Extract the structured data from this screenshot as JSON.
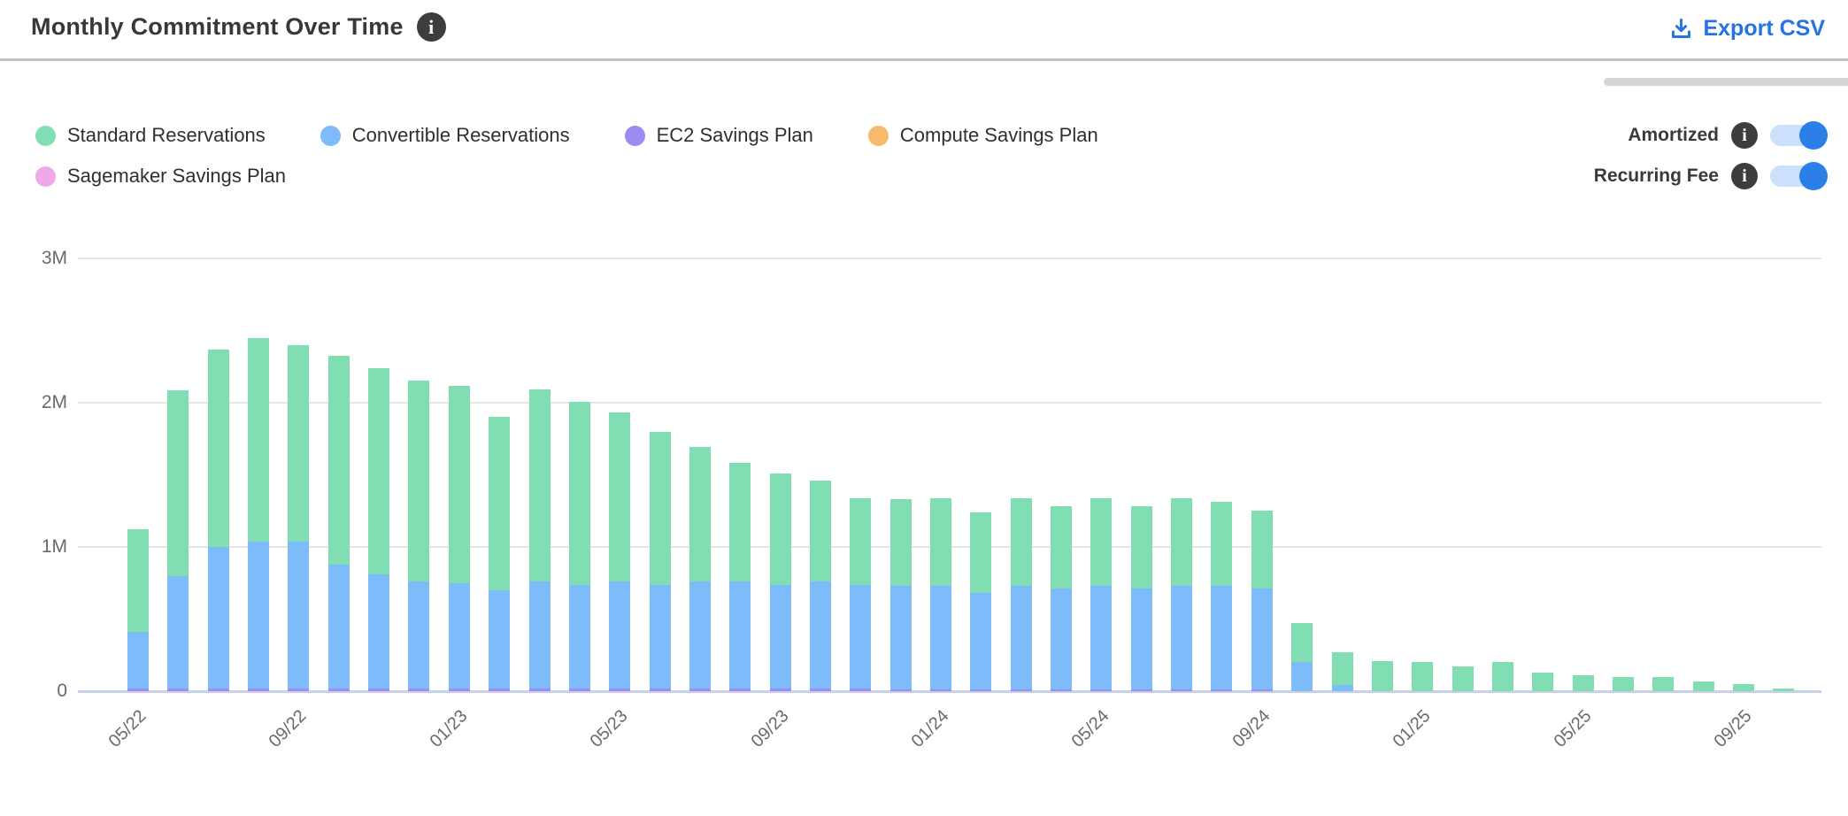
{
  "header": {
    "title": "Monthly Commitment Over Time",
    "title_info_icon": "info-icon",
    "export_label": "Export CSV",
    "export_icon": "download-icon",
    "export_color": "#2573e7"
  },
  "toggles": [
    {
      "label": "Amortized",
      "state": "on"
    },
    {
      "label": "Recurring Fee",
      "state": "on"
    }
  ],
  "toggle_colors": {
    "track": "#cbe0fa",
    "knob": "#2b7fe8"
  },
  "chart_data": {
    "type": "bar",
    "stacked": true,
    "title": "Monthly Commitment Over Time",
    "values_unit": "millions",
    "ylim": [
      0,
      3000000
    ],
    "yticks": [
      "0",
      "1M",
      "2M",
      "3M"
    ],
    "grid": "horizontal",
    "legend_position": "top-left",
    "categories": [
      "05/22",
      "06/22",
      "07/22",
      "08/22",
      "09/22",
      "10/22",
      "11/22",
      "12/22",
      "01/23",
      "02/23",
      "03/23",
      "04/23",
      "05/23",
      "06/23",
      "07/23",
      "08/23",
      "09/23",
      "10/23",
      "11/23",
      "12/23",
      "01/24",
      "02/24",
      "03/24",
      "04/24",
      "05/24",
      "06/24",
      "07/24",
      "08/24",
      "09/24",
      "10/24",
      "11/24",
      "12/24",
      "01/25",
      "02/25",
      "03/25",
      "04/25",
      "05/25",
      "06/25",
      "07/25",
      "08/25",
      "09/25",
      "10/25"
    ],
    "x_ticks": [
      {
        "index": 0,
        "label": "05/22"
      },
      {
        "index": 4,
        "label": "09/22"
      },
      {
        "index": 8,
        "label": "01/23"
      },
      {
        "index": 12,
        "label": "05/23"
      },
      {
        "index": 16,
        "label": "09/23"
      },
      {
        "index": 20,
        "label": "01/24"
      },
      {
        "index": 24,
        "label": "05/24"
      },
      {
        "index": 28,
        "label": "09/24"
      },
      {
        "index": 32,
        "label": "01/25"
      },
      {
        "index": 36,
        "label": "05/25"
      },
      {
        "index": 40,
        "label": "09/25"
      }
    ],
    "series": [
      {
        "name": "Standard Reservations",
        "color": "#80deb2",
        "values": [
          0.71,
          1.29,
          1.37,
          1.41,
          1.36,
          1.45,
          1.43,
          1.39,
          1.37,
          1.2,
          1.33,
          1.27,
          1.17,
          1.06,
          0.93,
          0.82,
          0.77,
          0.7,
          0.6,
          0.6,
          0.61,
          0.56,
          0.61,
          0.57,
          0.61,
          0.57,
          0.61,
          0.58,
          0.54,
          0.27,
          0.23,
          0.21,
          0.2,
          0.17,
          0.2,
          0.13,
          0.11,
          0.1,
          0.1,
          0.07,
          0.05,
          0.02
        ]
      },
      {
        "name": "Convertible Reservations",
        "color": "#7ebbfb",
        "values": [
          0.39,
          0.78,
          0.98,
          1.02,
          1.02,
          0.86,
          0.79,
          0.74,
          0.73,
          0.68,
          0.74,
          0.72,
          0.74,
          0.72,
          0.74,
          0.74,
          0.72,
          0.74,
          0.72,
          0.72,
          0.72,
          0.67,
          0.72,
          0.7,
          0.72,
          0.7,
          0.72,
          0.72,
          0.7,
          0.2,
          0.04,
          0,
          0,
          0,
          0,
          0,
          0,
          0,
          0,
          0,
          0,
          0
        ]
      },
      {
        "name": "EC2 Savings Plan",
        "color": "#9c8bf2",
        "values": [
          0.02,
          0.02,
          0.02,
          0.02,
          0.02,
          0.02,
          0.02,
          0.02,
          0.02,
          0.02,
          0.02,
          0.02,
          0.02,
          0.02,
          0.02,
          0.02,
          0.02,
          0.02,
          0.02,
          0.01,
          0.01,
          0.01,
          0.01,
          0.01,
          0.01,
          0.01,
          0.01,
          0.01,
          0.01,
          0,
          0,
          0,
          0,
          0,
          0,
          0,
          0,
          0,
          0,
          0,
          0,
          0
        ]
      },
      {
        "name": "Compute Savings Plan",
        "color": "#f5ba6b",
        "values": [
          0,
          0,
          0,
          0,
          0,
          0,
          0,
          0,
          0,
          0,
          0,
          0,
          0,
          0,
          0,
          0,
          0,
          0,
          0,
          0,
          0,
          0,
          0,
          0,
          0,
          0,
          0,
          0,
          0,
          0,
          0,
          0,
          0,
          0,
          0,
          0,
          0,
          0,
          0,
          0,
          0,
          0
        ]
      },
      {
        "name": "Sagemaker Savings Plan",
        "color": "#f0a9e8",
        "values": [
          0,
          0,
          0,
          0,
          0,
          0,
          0,
          0,
          0,
          0,
          0,
          0,
          0,
          0,
          0,
          0,
          0,
          0,
          0,
          0,
          0,
          0,
          0,
          0,
          0,
          0,
          0,
          0,
          0,
          0,
          0,
          0,
          0,
          0,
          0,
          0,
          0,
          0,
          0,
          0,
          0,
          0
        ]
      }
    ]
  }
}
